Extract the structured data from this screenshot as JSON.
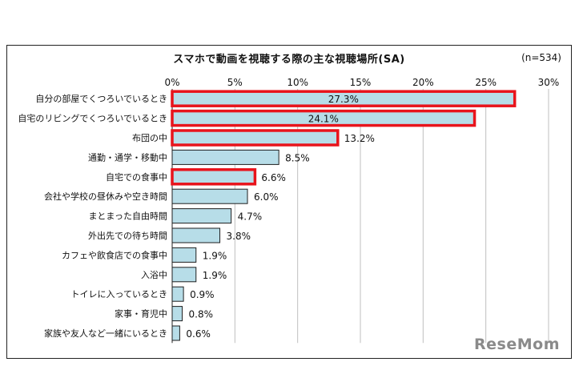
{
  "chart_data": {
    "type": "bar",
    "orientation": "horizontal",
    "title": "スマホで動画を視聴する際の主な視聴場所(SA)",
    "sample_size": "(n=534)",
    "categories": [
      "自分の部屋でくつろいでいるとき",
      "自宅のリビングでくつろいでいるとき",
      "布団の中",
      "通勤・通学・移動中",
      "自宅での食事中",
      "会社や学校の昼休みや空き時間",
      "まとまった自由時間",
      "外出先での待ち時間",
      "カフェや飲食店での食事中",
      "入浴中",
      "トイレに入っているとき",
      "家事・育児中",
      "家族や友人など一緒にいるとき"
    ],
    "values": [
      27.3,
      24.1,
      13.2,
      8.5,
      6.6,
      6.0,
      4.7,
      3.8,
      1.9,
      1.9,
      0.9,
      0.8,
      0.6
    ],
    "value_labels": [
      "27.3%",
      "24.1%",
      "13.2%",
      "8.5%",
      "6.6%",
      "6.0%",
      "4.7%",
      "3.8%",
      "1.9%",
      "1.9%",
      "0.9%",
      "0.8%",
      "0.6%"
    ],
    "highlighted": [
      true,
      true,
      true,
      false,
      true,
      false,
      false,
      false,
      false,
      false,
      false,
      false,
      false
    ],
    "xlim": [
      0,
      30
    ],
    "xticks": [
      "0%",
      "5%",
      "10%",
      "15%",
      "20%",
      "25%",
      "30%"
    ],
    "grid": true,
    "colors": {
      "bar_fill": "#b7dde8",
      "bar_stroke": "#1f1f1f",
      "highlight": "#e8141c",
      "grid": "#bfbfbf"
    }
  },
  "watermark": "ReseMom"
}
